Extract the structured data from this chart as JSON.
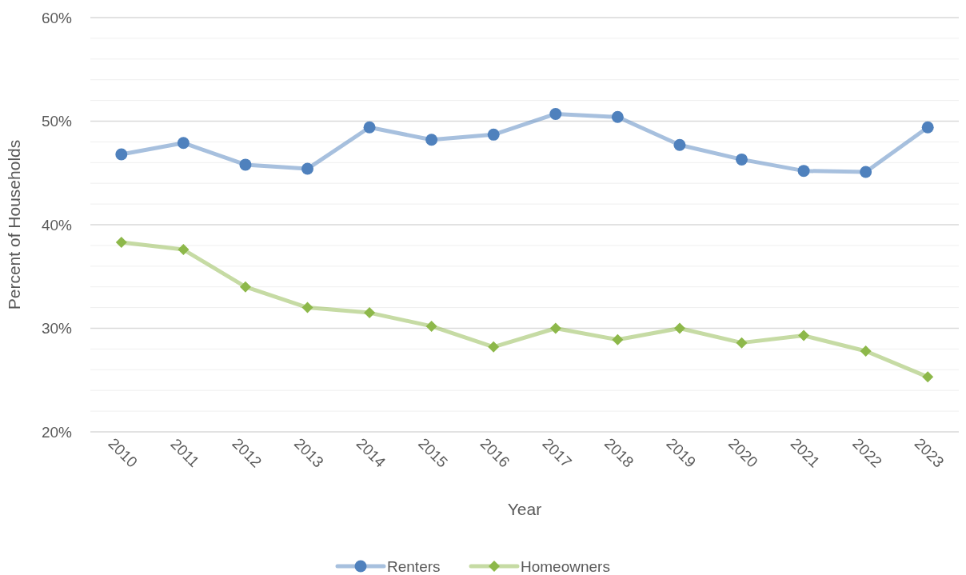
{
  "chart_data": {
    "type": "line",
    "xlabel": "Year",
    "ylabel": "Percent of Households",
    "categories": [
      "2010",
      "2011",
      "2012",
      "2013",
      "2014",
      "2015",
      "2016",
      "2017",
      "2018",
      "2019",
      "2020",
      "2021",
      "2022",
      "2023"
    ],
    "series": [
      {
        "name": "Renters",
        "color": "#4f81bd",
        "marker": "circle",
        "values": [
          46.8,
          47.9,
          45.8,
          45.4,
          49.4,
          48.2,
          48.7,
          50.7,
          50.4,
          47.7,
          46.3,
          45.2,
          45.1,
          49.4
        ]
      },
      {
        "name": "Homeowners",
        "color": "#8db84a",
        "marker": "diamond",
        "values": [
          38.3,
          37.6,
          34.0,
          32.0,
          31.5,
          30.2,
          28.2,
          30.0,
          28.9,
          30.0,
          28.6,
          29.3,
          27.8,
          25.3
        ]
      }
    ],
    "ylim": [
      20,
      60
    ],
    "yticks": [
      {
        "value": 20,
        "label": "20%"
      },
      {
        "value": 22,
        "label": null
      },
      {
        "value": 24,
        "label": null
      },
      {
        "value": 26,
        "label": null
      },
      {
        "value": 28,
        "label": null
      },
      {
        "value": 30,
        "label": "30%"
      },
      {
        "value": 32,
        "label": null
      },
      {
        "value": 34,
        "label": null
      },
      {
        "value": 36,
        "label": null
      },
      {
        "value": 38,
        "label": null
      },
      {
        "value": 40,
        "label": "40%"
      },
      {
        "value": 42,
        "label": null
      },
      {
        "value": 44,
        "label": null
      },
      {
        "value": 46,
        "label": null
      },
      {
        "value": 48,
        "label": null
      },
      {
        "value": 50,
        "label": "50%"
      },
      {
        "value": 52,
        "label": null
      },
      {
        "value": 54,
        "label": null
      },
      {
        "value": 56,
        "label": null
      },
      {
        "value": 58,
        "label": null
      },
      {
        "value": 60,
        "label": "60%"
      }
    ],
    "grid": true,
    "legend": "bottom"
  }
}
